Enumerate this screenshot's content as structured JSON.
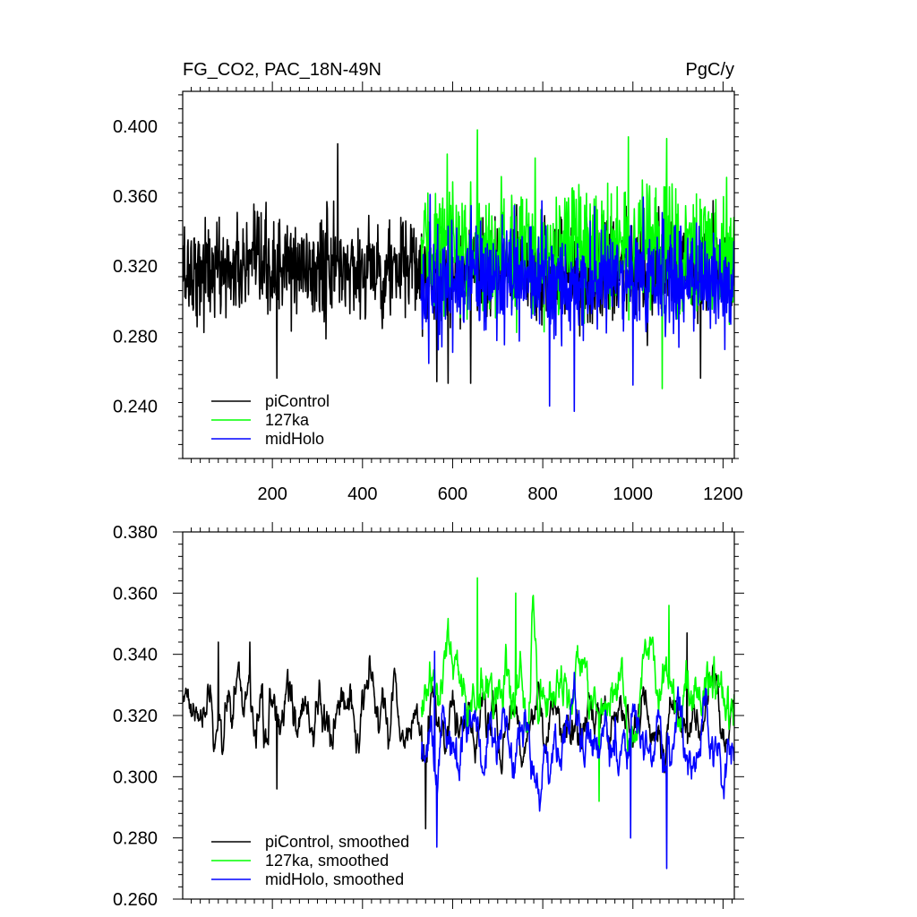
{
  "figure": {
    "title_left": "FG_CO2, PAC_18N-49N",
    "title_right": "PgC/y"
  },
  "chart_data": [
    {
      "type": "line",
      "title": "FG_CO2, PAC_18N-49N",
      "units": "PgC/y",
      "xlim": [
        1,
        1225
      ],
      "ylim": [
        0.21,
        0.42
      ],
      "x_ticks": [
        200,
        400,
        600,
        800,
        1000,
        1200
      ],
      "x_tick_labels": [
        "200",
        "400",
        "600",
        "800",
        "1000",
        "1200"
      ],
      "y_ticks": [
        0.24,
        0.28,
        0.32,
        0.36,
        0.4
      ],
      "y_tick_labels": [
        "0.240",
        "0.280",
        "0.320",
        "0.360",
        "0.400"
      ],
      "grid": false,
      "legend_position": "bottom-left",
      "series": [
        {
          "name": "piControl",
          "color": "#000000",
          "x_range": [
            1,
            1225
          ],
          "mean": 0.318,
          "amplitude": 0.026,
          "notable": [
            {
              "x": 345,
              "y": 0.39
            },
            {
              "x": 210,
              "y": 0.256
            },
            {
              "x": 565,
              "y": 0.254
            },
            {
              "x": 590,
              "y": 0.253
            },
            {
              "x": 640,
              "y": 0.253
            },
            {
              "x": 1150,
              "y": 0.256
            }
          ]
        },
        {
          "name": "127ka",
          "color": "#00ff00",
          "x_range": [
            530,
            1225
          ],
          "mean": 0.33,
          "amplitude": 0.032,
          "notable": [
            {
              "x": 655,
              "y": 0.398
            },
            {
              "x": 1075,
              "y": 0.393
            },
            {
              "x": 990,
              "y": 0.394
            },
            {
              "x": 1065,
              "y": 0.25
            }
          ]
        },
        {
          "name": "midHolo",
          "color": "#0000ff",
          "x_range": [
            530,
            1225
          ],
          "mean": 0.312,
          "amplitude": 0.028,
          "notable": [
            {
              "x": 550,
              "y": 0.361
            },
            {
              "x": 870,
              "y": 0.237
            },
            {
              "x": 815,
              "y": 0.24
            },
            {
              "x": 1000,
              "y": 0.252
            }
          ]
        }
      ]
    },
    {
      "type": "line",
      "xlim": [
        1,
        1225
      ],
      "ylim": [
        0.26,
        0.38
      ],
      "x_ticks": [
        200,
        400,
        600,
        800,
        1000,
        1200
      ],
      "x_tick_labels": [],
      "y_ticks": [
        0.26,
        0.28,
        0.3,
        0.32,
        0.34,
        0.36,
        0.38
      ],
      "y_tick_labels": [
        "0.260",
        "0.280",
        "0.300",
        "0.320",
        "0.340",
        "0.360",
        "0.380"
      ],
      "grid": false,
      "legend_position": "bottom-left",
      "series": [
        {
          "name": "piControl, smoothed",
          "color": "#000000",
          "x_range": [
            1,
            1225
          ],
          "mean": 0.318,
          "amplitude": 0.012,
          "notable": [
            {
              "x": 80,
              "y": 0.344
            },
            {
              "x": 150,
              "y": 0.344
            },
            {
              "x": 210,
              "y": 0.296
            },
            {
              "x": 540,
              "y": 0.283
            },
            {
              "x": 1120,
              "y": 0.347
            }
          ]
        },
        {
          "name": "127ka, smoothed",
          "color": "#00ff00",
          "x_range": [
            530,
            1225
          ],
          "mean": 0.328,
          "amplitude": 0.014,
          "notable": [
            {
              "x": 655,
              "y": 0.365
            },
            {
              "x": 740,
              "y": 0.36
            },
            {
              "x": 1080,
              "y": 0.356
            },
            {
              "x": 925,
              "y": 0.292
            }
          ]
        },
        {
          "name": "midHolo, smoothed",
          "color": "#0000ff",
          "x_range": [
            530,
            1225
          ],
          "mean": 0.311,
          "amplitude": 0.013,
          "notable": [
            {
              "x": 565,
              "y": 0.277
            },
            {
              "x": 1075,
              "y": 0.27
            },
            {
              "x": 560,
              "y": 0.341
            },
            {
              "x": 995,
              "y": 0.28
            }
          ]
        }
      ]
    }
  ]
}
